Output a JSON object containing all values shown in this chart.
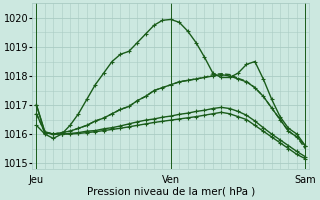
{
  "xlabel": "Pression niveau de la mer( hPa )",
  "background_color": "#cce8e0",
  "grid_color": "#aaccC4",
  "line_color": "#1a5c1a",
  "ylim": [
    1014.8,
    1020.4
  ],
  "yticks": [
    1015,
    1016,
    1017,
    1018,
    1019,
    1020
  ],
  "day_labels": [
    "Jeu",
    "Ven",
    "Sam"
  ],
  "day_positions": [
    0,
    16,
    32
  ],
  "n_points": 33,
  "series": [
    [
      1016.3,
      1016.0,
      1015.85,
      1016.0,
      1016.3,
      1016.7,
      1017.2,
      1017.7,
      1018.1,
      1018.5,
      1018.75,
      1018.85,
      1019.15,
      1019.45,
      1019.75,
      1019.92,
      1019.95,
      1019.85,
      1019.55,
      1019.15,
      1018.65,
      1018.1,
      1017.95,
      1017.95,
      1018.1,
      1018.4,
      1018.5,
      1017.9,
      1017.2,
      1016.6,
      1016.2,
      1016.0,
      1015.6
    ],
    [
      1016.7,
      1016.05,
      1016.0,
      1016.05,
      1016.1,
      1016.2,
      1016.3,
      1016.45,
      1016.55,
      1016.7,
      1016.85,
      1016.95,
      1017.15,
      1017.3,
      1017.5,
      1017.6,
      1017.7,
      1017.8,
      1017.85,
      1017.9,
      1017.95,
      1018.0,
      1018.05,
      1018.0,
      1017.9,
      1017.8,
      1017.6,
      1017.3,
      1016.9,
      1016.5,
      1016.1,
      1015.9,
      1015.6
    ],
    [
      1016.7,
      1016.05,
      1016.0,
      1016.05,
      1016.1,
      1016.2,
      1016.3,
      1016.45,
      1016.55,
      1016.7,
      1016.85,
      1016.95,
      1017.15,
      1017.3,
      1017.5,
      1017.6,
      1017.7,
      1017.8,
      1017.85,
      1017.9,
      1017.95,
      1018.05,
      1018.08,
      1018.05,
      1017.92,
      1017.82,
      1017.6,
      1017.3,
      1016.9,
      1016.5,
      1016.1,
      1015.9,
      1015.5
    ],
    [
      1017.0,
      1016.05,
      1016.0,
      1016.0,
      1016.02,
      1016.05,
      1016.1,
      1016.12,
      1016.18,
      1016.22,
      1016.28,
      1016.35,
      1016.42,
      1016.48,
      1016.52,
      1016.58,
      1016.62,
      1016.68,
      1016.72,
      1016.78,
      1016.82,
      1016.88,
      1016.92,
      1016.88,
      1016.78,
      1016.65,
      1016.45,
      1016.22,
      1016.0,
      1015.8,
      1015.6,
      1015.4,
      1015.22
    ],
    [
      1017.0,
      1016.08,
      1016.0,
      1016.0,
      1016.0,
      1016.02,
      1016.05,
      1016.08,
      1016.12,
      1016.16,
      1016.2,
      1016.25,
      1016.3,
      1016.35,
      1016.4,
      1016.44,
      1016.48,
      1016.52,
      1016.56,
      1016.6,
      1016.65,
      1016.7,
      1016.75,
      1016.7,
      1016.6,
      1016.5,
      1016.3,
      1016.1,
      1015.9,
      1015.7,
      1015.5,
      1015.3,
      1015.15
    ]
  ],
  "marker": "+",
  "marker_sizes": [
    3.5,
    3.5,
    0,
    3.5,
    3.5
  ],
  "linewidths": [
    1.0,
    1.0,
    1.0,
    1.0,
    1.0
  ],
  "linestyles": [
    "-",
    "-",
    "--",
    "-",
    "-"
  ],
  "xlabel_fontsize": 7.5,
  "tick_fontsize": 7
}
